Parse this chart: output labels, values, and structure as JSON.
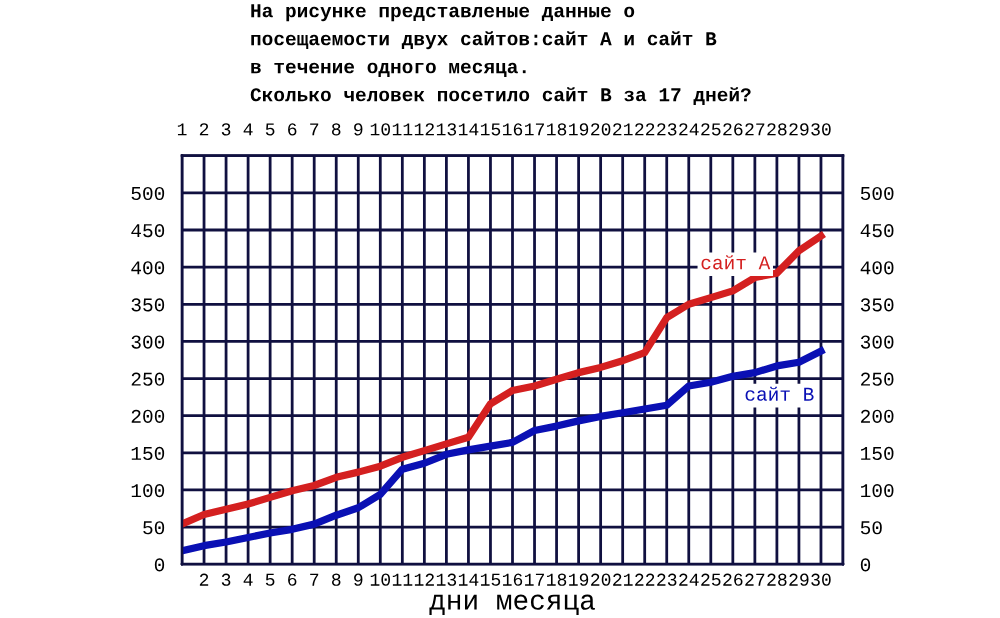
{
  "chart_data": {
    "type": "line",
    "title": "На рисунке представленые данные о\nпосещаемости двух сайтов:сайт А и сайт В\nв течение одного месяца.\nСколько человек посетило сайт В за 17 дней?",
    "xlabel": "дни месяца",
    "x": [
      1,
      2,
      3,
      4,
      5,
      6,
      7,
      8,
      9,
      10,
      11,
      12,
      13,
      14,
      15,
      16,
      17,
      18,
      19,
      20,
      21,
      22,
      23,
      24,
      25,
      26,
      27,
      28,
      29,
      30
    ],
    "series": [
      {
        "name": "сайт А",
        "color": "#d42020",
        "values": [
          54,
          67,
          74,
          81,
          90,
          99,
          106,
          117,
          124,
          132,
          144,
          153,
          162,
          171,
          216,
          234,
          240,
          249,
          258,
          265,
          274,
          285,
          332,
          350,
          359,
          368,
          386,
          392,
          422,
          442
        ]
      },
      {
        "name": "сайт В",
        "color": "#0a10b4",
        "values": [
          18,
          25,
          30,
          36,
          42,
          47,
          54,
          66,
          76,
          94,
          128,
          136,
          148,
          154,
          159,
          164,
          180,
          186,
          193,
          199,
          204,
          209,
          214,
          240,
          245,
          253,
          258,
          267,
          272,
          287
        ]
      }
    ],
    "xlim": [
      1,
      31
    ],
    "xticks": [
      {
        "value": 1,
        "label": null
      },
      2,
      3,
      4,
      5,
      6,
      7,
      8,
      9,
      10,
      11,
      12,
      13,
      14,
      15,
      16,
      17,
      18,
      19,
      20,
      21,
      22,
      23,
      24,
      25,
      26,
      27,
      28,
      29,
      30
    ],
    "x2lim": [
      1,
      31
    ],
    "x2ticks": [
      1,
      2,
      3,
      4,
      5,
      6,
      7,
      8,
      9,
      10,
      11,
      12,
      13,
      14,
      15,
      16,
      17,
      18,
      19,
      20,
      21,
      22,
      23,
      24,
      25,
      26,
      27,
      28,
      29,
      30
    ],
    "ylim": [
      0,
      550
    ],
    "yticks": [
      0,
      50,
      100,
      150,
      200,
      250,
      300,
      350,
      400,
      450,
      500
    ],
    "y2lim": [
      0,
      550
    ],
    "y2ticks": [
      0,
      50,
      100,
      150,
      200,
      250,
      300,
      350,
      400,
      450,
      500
    ],
    "grid": true,
    "legend": false,
    "marker": "none",
    "line_style": "solid"
  }
}
